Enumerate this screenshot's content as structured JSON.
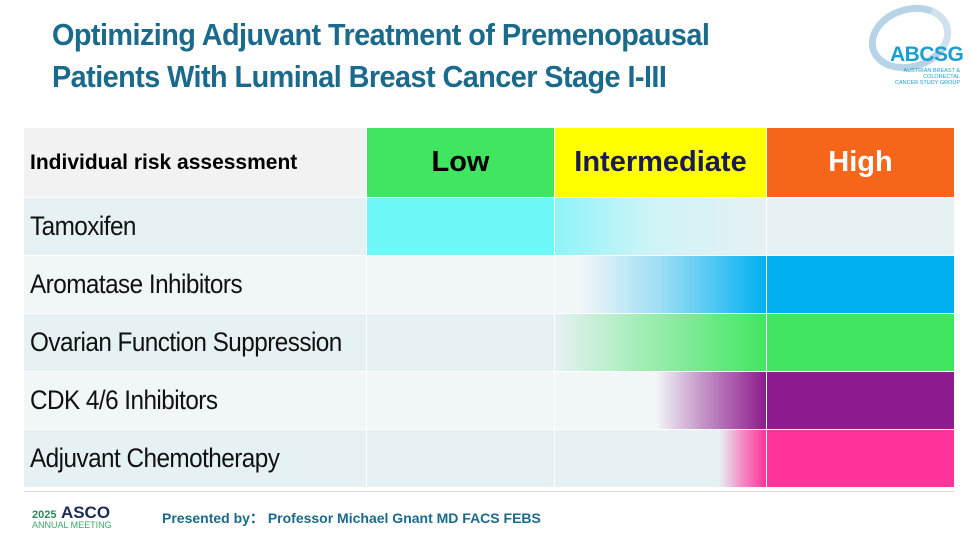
{
  "title": {
    "line1": "Optimizing Adjuvant Treatment of Premenopausal",
    "line2": "Patients With Luminal Breast Cancer Stage I-III"
  },
  "logo": {
    "name": "ABCSG",
    "subtitle_line1": "AUSTRIAN BREAST & COLORECTAL",
    "subtitle_line2": "CANCER STUDY GROUP"
  },
  "table": {
    "header": {
      "label": "Individual risk assessment",
      "low": "Low",
      "intermediate": "Intermediate",
      "high": "High"
    },
    "header_colors": {
      "low": "#41e660",
      "intermediate": "#ffff00",
      "high": "#f5661a"
    },
    "rows": [
      {
        "label": "Tamoxifen",
        "color": "#6ef8fa",
        "coverage": "low fully, fading through intermediate"
      },
      {
        "label": "Aromatase Inhibitors",
        "color": "#00b0f0",
        "coverage": "high, gradient from intermediate"
      },
      {
        "label": "Ovarian Function Suppression",
        "color": "#41e660",
        "coverage": "high, gradient from intermediate"
      },
      {
        "label": "CDK 4/6 Inhibitors",
        "color": "#8e1c8e",
        "coverage": "high, gradient from late intermediate"
      },
      {
        "label": "Adjuvant Chemotherapy",
        "color": "#ff3399",
        "coverage": "high, gradient at end of intermediate"
      }
    ]
  },
  "footer": {
    "asco_year": "2025",
    "asco_name": "ASCO",
    "asco_sub": "ANNUAL MEETING",
    "presented_by": "Presented by： Professor Michael Gnant MD FACS FEBS"
  }
}
